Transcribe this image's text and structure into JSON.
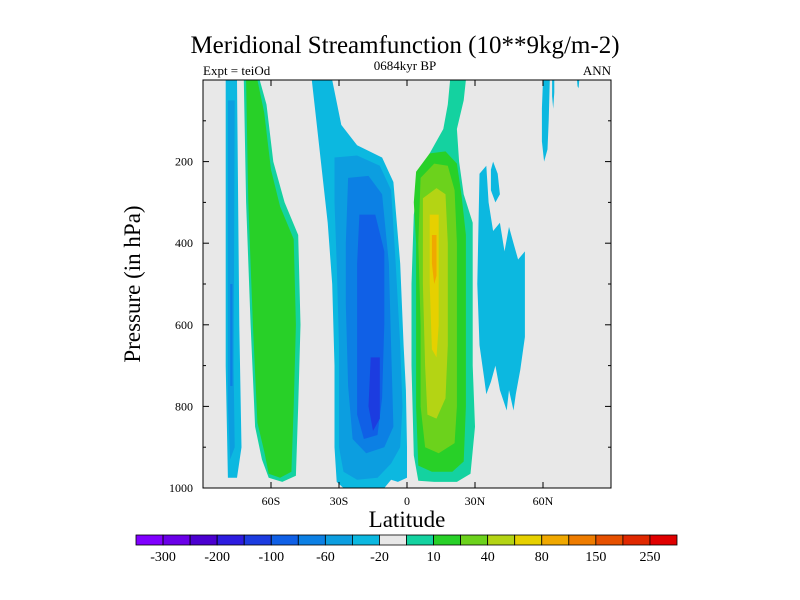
{
  "chart_data": {
    "type": "contour",
    "title": "Meridional Streamfunction (10**9kg/m-2)",
    "left_label": "Expt = teiOd",
    "center_label": "0684kyr BP",
    "right_label": "ANN",
    "xlabel": "Latitude",
    "ylabel": "Pressure (in hPa)",
    "xlim": [
      -90,
      90
    ],
    "ylim": [
      0,
      1000
    ],
    "y_inverted": true,
    "x_ticks": [
      {
        "value": -60,
        "label": "60S"
      },
      {
        "value": -30,
        "label": "30S"
      },
      {
        "value": 0,
        "label": "0"
      },
      {
        "value": 30,
        "label": "30N"
      },
      {
        "value": 60,
        "label": "60N"
      }
    ],
    "y_ticks": [
      {
        "value": 200,
        "label": "200"
      },
      {
        "value": 400,
        "label": "400"
      },
      {
        "value": 600,
        "label": "600"
      },
      {
        "value": 800,
        "label": "800"
      },
      {
        "value": 1000,
        "label": "1000"
      }
    ],
    "background_color": "#e8e8e8",
    "colorbar": {
      "colors": [
        "#8000ff",
        "#6a00e8",
        "#4b00d0",
        "#2d1ce0",
        "#1c3ce0",
        "#1060e6",
        "#0c80e4",
        "#0c9ee0",
        "#0cb8e0",
        "#e8e8e8",
        "#14d2a0",
        "#28d028",
        "#6cd21c",
        "#b4d414",
        "#e6d000",
        "#f0a800",
        "#ee7c00",
        "#e65000",
        "#e02800",
        "#e00000"
      ],
      "labels": [
        {
          "after_box": 1,
          "text": "-300"
        },
        {
          "after_box": 3,
          "text": "-200"
        },
        {
          "after_box": 5,
          "text": "-100"
        },
        {
          "after_box": 7,
          "text": "-60"
        },
        {
          "after_box": 9,
          "text": "-20"
        },
        {
          "after_box": 11,
          "text": "10"
        },
        {
          "after_box": 13,
          "text": "40"
        },
        {
          "after_box": 15,
          "text": "80"
        },
        {
          "after_box": 17,
          "text": "150"
        },
        {
          "after_box": 19,
          "text": "250"
        }
      ]
    },
    "regions": [
      {
        "name": "polar-sh-outer",
        "color": "#0cb8e0",
        "points": [
          [
            -80,
            0
          ],
          [
            -75,
            0
          ],
          [
            -74,
            600
          ],
          [
            -73,
            900
          ],
          [
            -75,
            975
          ],
          [
            -79,
            975
          ],
          [
            -80,
            700
          ]
        ]
      },
      {
        "name": "polar-sh-mid",
        "color": "#0c9ee0",
        "points": [
          [
            -79,
            50
          ],
          [
            -76,
            50
          ],
          [
            -76.5,
            700
          ],
          [
            -76,
            900
          ],
          [
            -78,
            930
          ],
          [
            -79,
            800
          ]
        ]
      },
      {
        "name": "polar-sh-core",
        "color": "#0c80e4",
        "points": [
          [
            -78,
            500
          ],
          [
            -77,
            500
          ],
          [
            -77,
            750
          ],
          [
            -78,
            750
          ]
        ]
      },
      {
        "name": "ferrel-sh-outer",
        "color": "#14d2a0",
        "points": [
          [
            -72,
            0
          ],
          [
            -65,
            0
          ],
          [
            -62,
            60
          ],
          [
            -59,
            200
          ],
          [
            -54,
            300
          ],
          [
            -48,
            380
          ],
          [
            -47,
            600
          ],
          [
            -48,
            800
          ],
          [
            -49,
            970
          ],
          [
            -55,
            985
          ],
          [
            -61,
            975
          ],
          [
            -64,
            930
          ],
          [
            -67,
            850
          ],
          [
            -69,
            600
          ],
          [
            -71,
            300
          ]
        ]
      },
      {
        "name": "ferrel-sh-fill",
        "color": "#28d028",
        "points": [
          [
            -71,
            0
          ],
          [
            -66,
            0
          ],
          [
            -63,
            80
          ],
          [
            -60,
            220
          ],
          [
            -56,
            310
          ],
          [
            -50,
            390
          ],
          [
            -49,
            600
          ],
          [
            -50,
            800
          ],
          [
            -51,
            960
          ],
          [
            -56,
            975
          ],
          [
            -61,
            965
          ],
          [
            -63,
            910
          ],
          [
            -66,
            840
          ],
          [
            -68,
            600
          ],
          [
            -70,
            300
          ]
        ]
      },
      {
        "name": "hadley-sh-b1",
        "color": "#0cb8e0",
        "points": [
          [
            -42,
            0
          ],
          [
            -33,
            0
          ],
          [
            -29,
            110
          ],
          [
            -22,
            160
          ],
          [
            -11,
            190
          ],
          [
            -6,
            250
          ],
          [
            -3,
            450
          ],
          [
            -1.5,
            650
          ],
          [
            -0.5,
            760
          ],
          [
            0,
            900
          ],
          [
            0,
            975
          ],
          [
            -4,
            985
          ],
          [
            -7,
            980
          ],
          [
            -10,
            1000
          ],
          [
            -20,
            1000
          ],
          [
            -28,
            1000
          ],
          [
            -31,
            985
          ],
          [
            -32,
            900
          ],
          [
            -32,
            700
          ],
          [
            -33,
            500
          ],
          [
            -35,
            350
          ],
          [
            -38,
            200
          ]
        ]
      },
      {
        "name": "hadley-sh-b2",
        "color": "#0c9ee0",
        "points": [
          [
            -32,
            190
          ],
          [
            -22,
            185
          ],
          [
            -12,
            210
          ],
          [
            -7,
            270
          ],
          [
            -5,
            450
          ],
          [
            -3,
            650
          ],
          [
            -2,
            800
          ],
          [
            -3,
            900
          ],
          [
            -7,
            940
          ],
          [
            -13,
            975
          ],
          [
            -22,
            980
          ],
          [
            -28,
            960
          ],
          [
            -30,
            900
          ],
          [
            -30,
            650
          ],
          [
            -31,
            450
          ],
          [
            -32,
            300
          ]
        ]
      },
      {
        "name": "hadley-sh-b3",
        "color": "#0c80e4",
        "points": [
          [
            -26,
            240
          ],
          [
            -17,
            235
          ],
          [
            -11,
            280
          ],
          [
            -8,
            450
          ],
          [
            -7,
            650
          ],
          [
            -6,
            850
          ],
          [
            -10,
            900
          ],
          [
            -18,
            915
          ],
          [
            -24,
            880
          ],
          [
            -26,
            750
          ],
          [
            -27,
            550
          ],
          [
            -27,
            400
          ]
        ]
      },
      {
        "name": "hadley-sh-b4",
        "color": "#1060e6",
        "points": [
          [
            -21,
            330
          ],
          [
            -14,
            330
          ],
          [
            -10,
            420
          ],
          [
            -10,
            600
          ],
          [
            -11,
            780
          ],
          [
            -13,
            870
          ],
          [
            -19,
            880
          ],
          [
            -22,
            820
          ],
          [
            -22,
            600
          ],
          [
            -22,
            450
          ]
        ]
      },
      {
        "name": "hadley-sh-b5",
        "color": "#1c3ce0",
        "points": [
          [
            -16,
            680
          ],
          [
            -12,
            680
          ],
          [
            -12,
            830
          ],
          [
            -15,
            860
          ],
          [
            -17,
            800
          ]
        ]
      },
      {
        "name": "hadley-nh-b1",
        "color": "#14d2a0",
        "points": [
          [
            19,
            0
          ],
          [
            26,
            0
          ],
          [
            25,
            50
          ],
          [
            22,
            120
          ],
          [
            23,
            200
          ],
          [
            25,
            280
          ],
          [
            29,
            350
          ],
          [
            29,
            500
          ],
          [
            29,
            700
          ],
          [
            30,
            850
          ],
          [
            28,
            965
          ],
          [
            22,
            985
          ],
          [
            12,
            985
          ],
          [
            5,
            982
          ],
          [
            3,
            920
          ],
          [
            2,
            700
          ],
          [
            2,
            500
          ],
          [
            3,
            330
          ],
          [
            6,
            220
          ],
          [
            11,
            170
          ],
          [
            16,
            120
          ],
          [
            18,
            60
          ]
        ]
      },
      {
        "name": "hadley-nh-b2",
        "color": "#28d028",
        "points": [
          [
            4,
            225
          ],
          [
            10,
            180
          ],
          [
            17,
            175
          ],
          [
            22,
            205
          ],
          [
            24,
            280
          ],
          [
            26,
            380
          ],
          [
            26,
            600
          ],
          [
            26,
            800
          ],
          [
            25,
            935
          ],
          [
            20,
            960
          ],
          [
            11,
            960
          ],
          [
            5,
            945
          ],
          [
            4,
            800
          ],
          [
            4,
            600
          ],
          [
            4,
            400
          ],
          [
            3,
            300
          ]
        ]
      },
      {
        "name": "hadley-nh-b3",
        "color": "#6cd21c",
        "points": [
          [
            6,
            240
          ],
          [
            12,
            205
          ],
          [
            18,
            210
          ],
          [
            21,
            270
          ],
          [
            22,
            400
          ],
          [
            22,
            600
          ],
          [
            22,
            800
          ],
          [
            21,
            890
          ],
          [
            14,
            915
          ],
          [
            8,
            900
          ],
          [
            6,
            800
          ],
          [
            6,
            600
          ],
          [
            5,
            400
          ]
        ]
      },
      {
        "name": "hadley-nh-b4",
        "color": "#b4d414",
        "points": [
          [
            7,
            290
          ],
          [
            13,
            265
          ],
          [
            17,
            280
          ],
          [
            18,
            400
          ],
          [
            18,
            650
          ],
          [
            17,
            780
          ],
          [
            13,
            830
          ],
          [
            9,
            820
          ],
          [
            8,
            700
          ],
          [
            7,
            500
          ]
        ]
      },
      {
        "name": "hadley-nh-b5",
        "color": "#e6d000",
        "points": [
          [
            10,
            330
          ],
          [
            14,
            330
          ],
          [
            14,
            450
          ],
          [
            14,
            600
          ],
          [
            13,
            680
          ],
          [
            11,
            660
          ],
          [
            10,
            500
          ]
        ]
      },
      {
        "name": "hadley-nh-b6",
        "color": "#f0a800",
        "points": [
          [
            11,
            380
          ],
          [
            13,
            380
          ],
          [
            13,
            480
          ],
          [
            12,
            500
          ],
          [
            11,
            450
          ]
        ]
      },
      {
        "name": "ferrel-nh",
        "color": "#0cb8e0",
        "points": [
          [
            32,
            230
          ],
          [
            35,
            210
          ],
          [
            36,
            300
          ],
          [
            38,
            370
          ],
          [
            41,
            350
          ],
          [
            43,
            420
          ],
          [
            45,
            360
          ],
          [
            47,
            400
          ],
          [
            49,
            440
          ],
          [
            52,
            420
          ],
          [
            52,
            520
          ],
          [
            52,
            630
          ],
          [
            50,
            710
          ],
          [
            48,
            770
          ],
          [
            47,
            810
          ],
          [
            45,
            760
          ],
          [
            44,
            810
          ],
          [
            41,
            760
          ],
          [
            39,
            700
          ],
          [
            37,
            740
          ],
          [
            35,
            770
          ],
          [
            34,
            730
          ],
          [
            32,
            650
          ],
          [
            31,
            500
          ]
        ]
      },
      {
        "name": "nh-upper-a",
        "color": "#0cb8e0",
        "points": [
          [
            37,
            220
          ],
          [
            38,
            200
          ],
          [
            40,
            230
          ],
          [
            41,
            280
          ],
          [
            39,
            300
          ],
          [
            37,
            270
          ]
        ]
      },
      {
        "name": "nh-upper-b",
        "color": "#0cb8e0",
        "points": [
          [
            60,
            0
          ],
          [
            63,
            0
          ],
          [
            62.5,
            100
          ],
          [
            62,
            170
          ],
          [
            60.5,
            200
          ],
          [
            59.5,
            150
          ],
          [
            59.5,
            70
          ]
        ]
      },
      {
        "name": "nh-upper-c",
        "color": "#0cb8e0",
        "points": [
          [
            64,
            0
          ],
          [
            65,
            0
          ],
          [
            65,
            30
          ],
          [
            64.5,
            70
          ],
          [
            64,
            40
          ]
        ]
      },
      {
        "name": "nh-upper-d",
        "color": "#0cb8e0",
        "points": [
          [
            75,
            0
          ],
          [
            76,
            0
          ],
          [
            75.7,
            20
          ],
          [
            75.2,
            15
          ]
        ]
      }
    ]
  }
}
